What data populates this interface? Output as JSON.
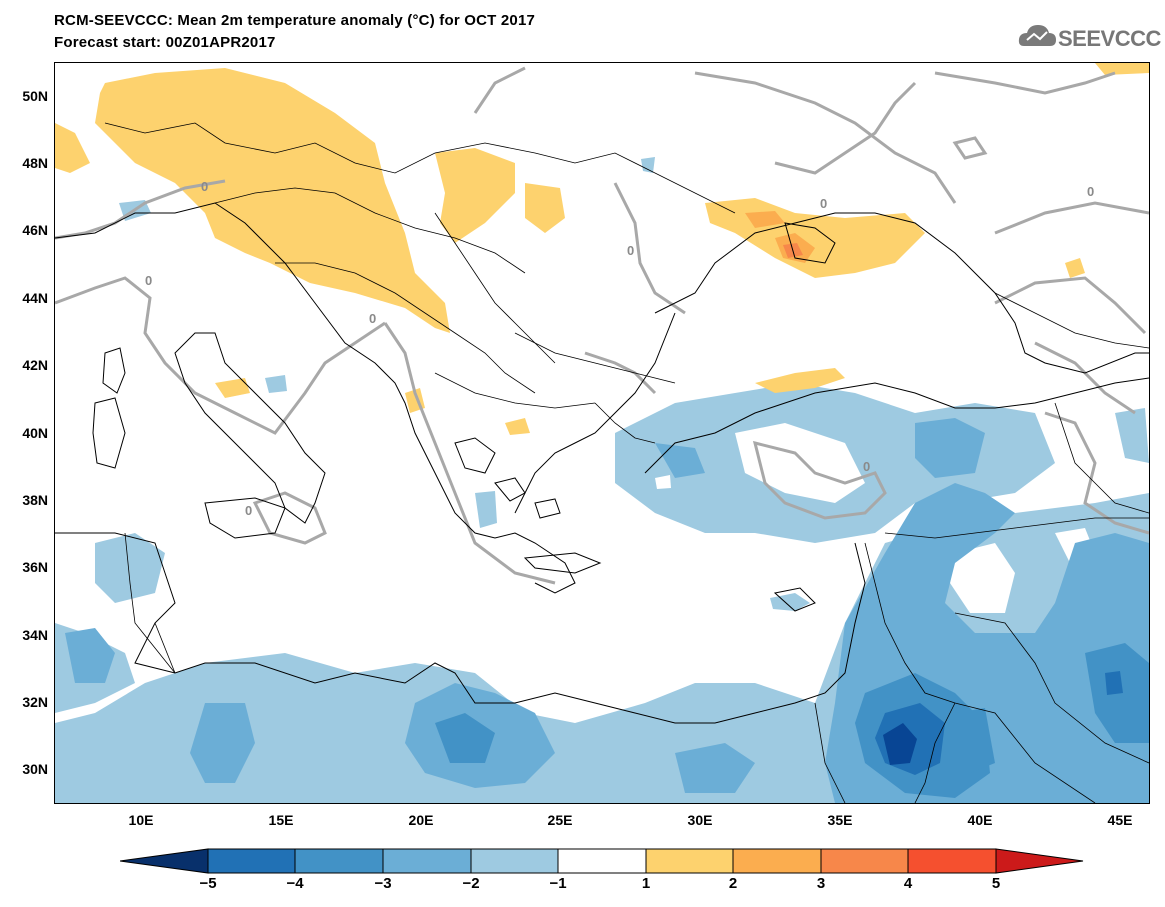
{
  "header": {
    "title": "RCM-SEEVCCC: Mean 2m temperature anomaly (°C) for OCT 2017",
    "subtitle": "Forecast start: 00Z01APR2017"
  },
  "logo": {
    "text": "SEEVCCC",
    "icon": "cloud-icon"
  },
  "map": {
    "lat_labels": [
      "50N",
      "48N",
      "46N",
      "44N",
      "42N",
      "40N",
      "38N",
      "36N",
      "34N",
      "32N",
      "30N"
    ],
    "lon_labels": [
      "10E",
      "15E",
      "20E",
      "25E",
      "30E",
      "35E",
      "40E",
      "45E"
    ],
    "contour_labels": [
      "0",
      "0",
      "0",
      "0",
      "0",
      "0",
      "0",
      "0"
    ],
    "colors": {
      "cool_1": "#9ecae1",
      "cool_2": "#6baed6",
      "cool_3": "#4292c6",
      "cool_4": "#2171b5",
      "cool_5": "#084594",
      "warm_1": "#fdd26e",
      "warm_2": "#fbad4f",
      "warm_3": "#f7874a",
      "zero_contour": "#a8a8a8"
    }
  },
  "colorbar": {
    "tick_labels": [
      "−5",
      "−4",
      "−3",
      "−2",
      "−1",
      "1",
      "2",
      "3",
      "4",
      "5"
    ],
    "colors": [
      "#08306b",
      "#2171b5",
      "#4292c6",
      "#6baed6",
      "#9ecae1",
      "#ffffff",
      "#fdd26e",
      "#fbad4f",
      "#f7874a",
      "#f5502f",
      "#cc1a1a"
    ]
  }
}
